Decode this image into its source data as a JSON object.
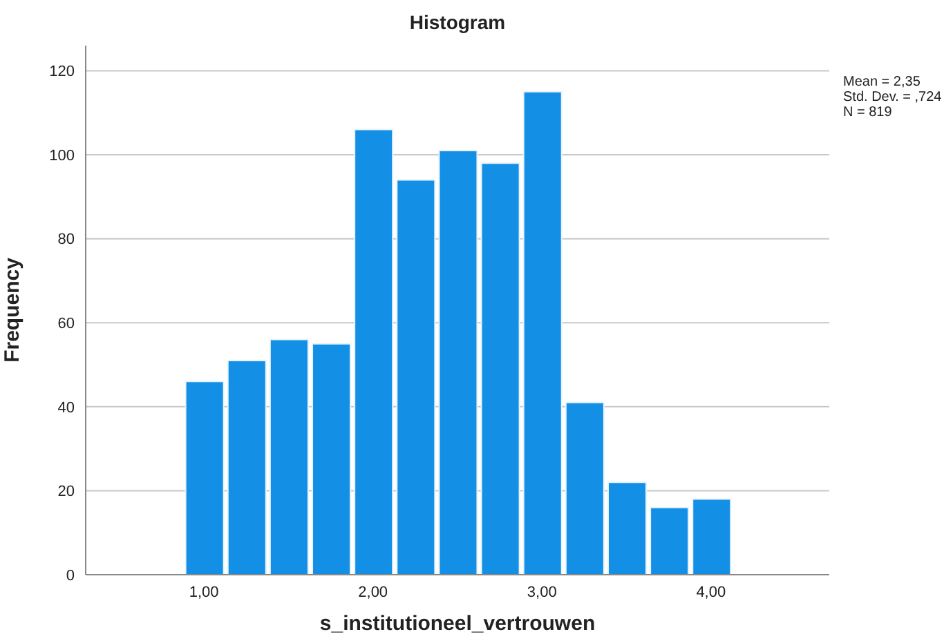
{
  "chart_data": {
    "type": "histogram",
    "title": "Histogram",
    "xlabel": "s_institutioneel_vertrouwen",
    "ylabel": "Frequency",
    "bins": [
      0.875,
      1.125,
      1.375,
      1.625,
      1.875,
      2.125,
      2.375,
      2.625,
      2.875,
      3.125,
      3.375,
      3.625,
      3.875,
      4.125
    ],
    "values": [
      46,
      51,
      56,
      55,
      106,
      94,
      101,
      98,
      115,
      41,
      22,
      16,
      18
    ],
    "color": "#1390e6",
    "xlim": [
      0.3,
      4.7
    ],
    "xticks": [
      {
        "value": 1,
        "label": "1,00"
      },
      {
        "value": 2,
        "label": "2,00"
      },
      {
        "value": 3,
        "label": "3,00"
      },
      {
        "value": 4,
        "label": "4,00"
      }
    ],
    "ylim": [
      0,
      126
    ],
    "yticks": [
      0,
      20,
      40,
      60,
      80,
      100,
      120
    ],
    "grid": "y",
    "annotations": [
      "Mean = 2,35",
      "Std. Dev. = ,724",
      "N = 819"
    ]
  }
}
